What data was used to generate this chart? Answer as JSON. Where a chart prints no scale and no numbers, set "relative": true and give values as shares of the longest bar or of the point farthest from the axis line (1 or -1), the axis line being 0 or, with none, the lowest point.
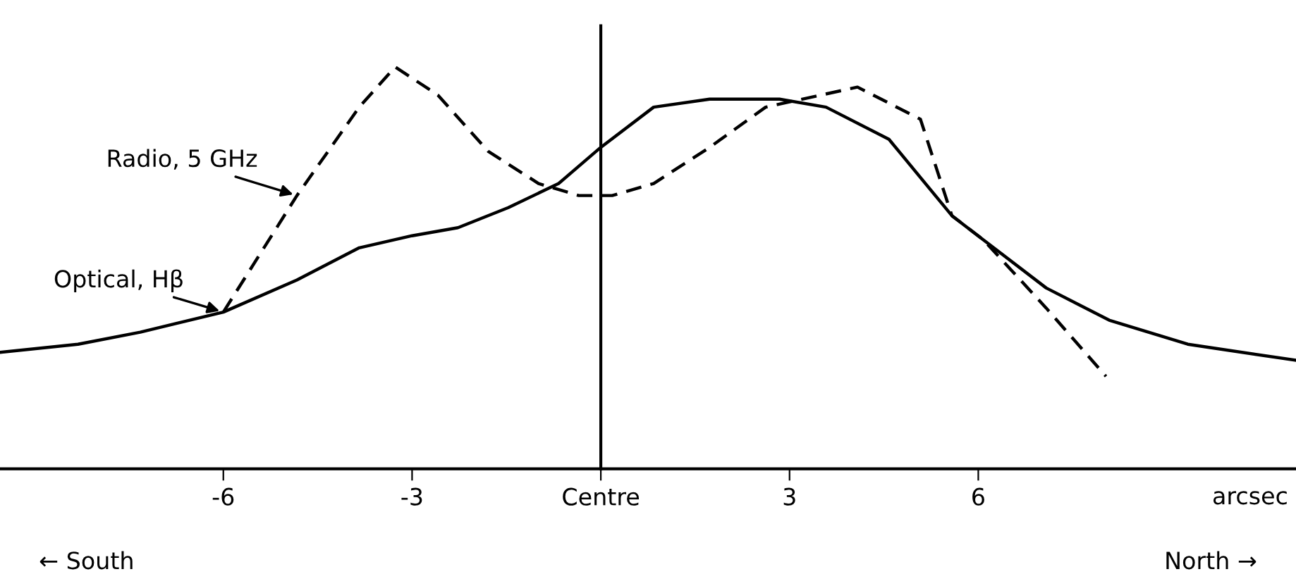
{
  "chart_data": {
    "type": "line",
    "relative": true,
    "xlabel": "arcsec",
    "xlim": [
      -9.55,
      11.05
    ],
    "xticks": [
      -6,
      -3,
      {
        "value": 0,
        "label": "Centre"
      },
      3,
      6
    ],
    "ref_lines": [
      {
        "axis": "x",
        "value": 0,
        "color": "#000000"
      }
    ],
    "annotations": [
      "← South",
      "North →"
    ],
    "grid": false,
    "legend": false,
    "marker": "none",
    "series": [
      {
        "name": "Radio, 5 GHz",
        "color": "#000000",
        "line_style": "dashed",
        "x": [
          -6,
          -4.83,
          -3.84,
          -3.27,
          -2.59,
          -1.79,
          -0.99,
          -0.35,
          0.18,
          0.84,
          1.73,
          2.62,
          4.08,
          5.08,
          5.58,
          6.08,
          7.08,
          8.03
        ],
        "values": [
          0.39,
          0.68,
          0.9,
          1.0,
          0.93,
          0.79,
          0.71,
          0.68,
          0.68,
          0.71,
          0.8,
          0.9,
          0.95,
          0.87,
          0.63,
          0.57,
          0.4,
          0.23
        ]
      },
      {
        "name": "Optical, Hβ",
        "color": "#000000",
        "line_style": "solid",
        "x": [
          -9.55,
          -8.31,
          -7.32,
          -6,
          -4.83,
          -3.84,
          -3,
          -2.27,
          -1.47,
          -0.67,
          0,
          0.84,
          1.73,
          2.84,
          3.58,
          4.58,
          5.58,
          6.08,
          7.08,
          8.08,
          9.33,
          11.05
        ],
        "values": [
          0.29,
          0.31,
          0.34,
          0.39,
          0.47,
          0.55,
          0.58,
          0.6,
          0.65,
          0.71,
          0.8,
          0.9,
          0.92,
          0.92,
          0.9,
          0.82,
          0.63,
          0.57,
          0.45,
          0.37,
          0.31,
          0.27
        ]
      }
    ]
  }
}
